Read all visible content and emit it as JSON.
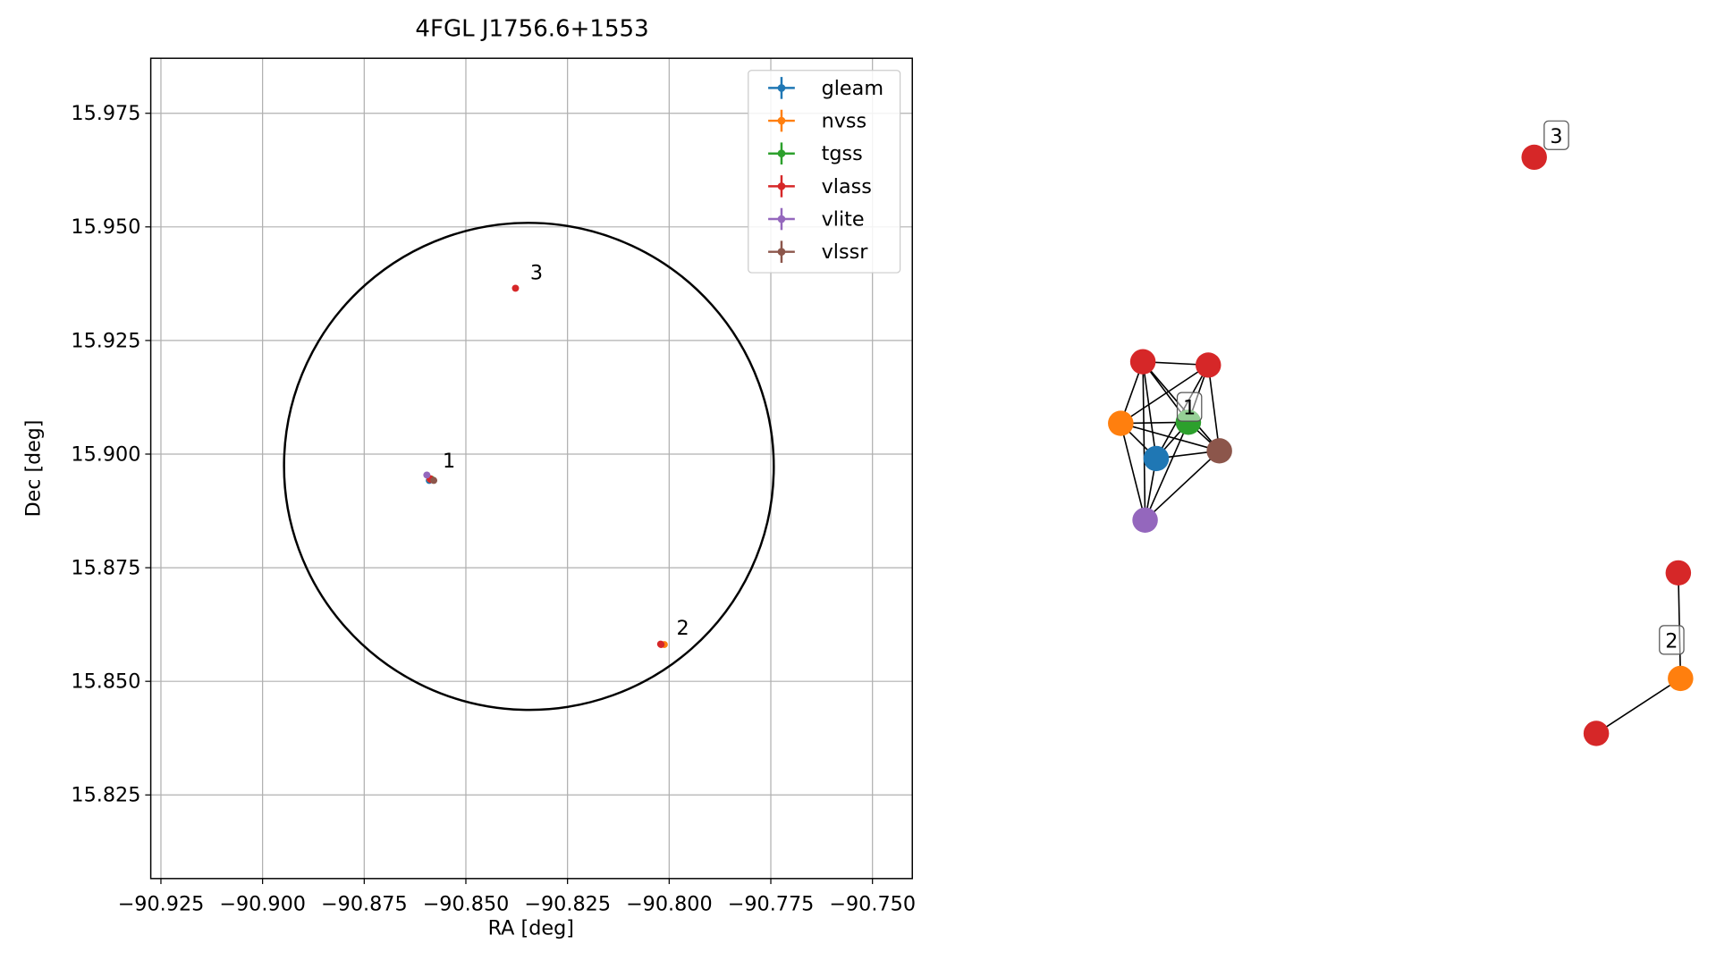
{
  "chart_data": [
    {
      "type": "scatter",
      "title": "4FGL J1756.6+1553",
      "x_label": "RA [deg]",
      "y_label": "Dec [deg]",
      "xlim": [
        -90.9275,
        -90.7402
      ],
      "ylim": [
        15.8066,
        15.9871
      ],
      "xticks": [
        {
          "value": -90.925,
          "label": "−90.925"
        },
        {
          "value": -90.9,
          "label": "−90.900"
        },
        {
          "value": -90.875,
          "label": "−90.875"
        },
        {
          "value": -90.85,
          "label": "−90.850"
        },
        {
          "value": -90.825,
          "label": "−90.825"
        },
        {
          "value": -90.8,
          "label": "−90.800"
        },
        {
          "value": -90.775,
          "label": "−90.775"
        },
        {
          "value": -90.75,
          "label": "−90.750"
        }
      ],
      "yticks": [
        {
          "value": 15.825,
          "label": "15.825"
        },
        {
          "value": 15.85,
          "label": "15.850"
        },
        {
          "value": 15.875,
          "label": "15.875"
        },
        {
          "value": 15.9,
          "label": "15.900"
        },
        {
          "value": 15.925,
          "label": "15.925"
        },
        {
          "value": 15.95,
          "label": "15.950"
        },
        {
          "value": 15.975,
          "label": "15.975"
        }
      ],
      "grid": true,
      "legend": "upper right",
      "series": [
        {
          "name": "gleam",
          "color": "#1f77b4",
          "x": [
            -90.859
          ],
          "values": [
            15.8942
          ]
        },
        {
          "name": "nvss",
          "color": "#ff7f0e",
          "x": [
            -90.8588,
            -90.8012
          ],
          "values": [
            15.8945,
            15.8581
          ]
        },
        {
          "name": "tgss",
          "color": "#2ca02c",
          "x": [
            -90.8585
          ],
          "values": [
            15.8945
          ]
        },
        {
          "name": "vlass",
          "color": "#d62728",
          "x": [
            -90.8588,
            -90.8586,
            -90.8021,
            -90.802,
            -90.8378
          ],
          "values": [
            15.8946,
            15.8944,
            15.8582,
            15.8581,
            15.9365
          ]
        },
        {
          "name": "vlite",
          "color": "#9467bd",
          "x": [
            -90.8596
          ],
          "values": [
            15.8954
          ]
        },
        {
          "name": "vlssr",
          "color": "#8c564b",
          "x": [
            -90.8579
          ],
          "values": [
            15.8942
          ]
        }
      ],
      "ellipse": {
        "center_x": -90.8345,
        "center_y": 15.8973,
        "half_width": 0.0602,
        "half_height": 0.0536,
        "angle": -20
      },
      "annotations": [
        {
          "text": "1",
          "x": -90.8557,
          "y": 15.8985
        },
        {
          "text": "2",
          "x": -90.7982,
          "y": 15.8617
        },
        {
          "text": "3",
          "x": -90.8342,
          "y": 15.9399
        }
      ]
    },
    {
      "type": "graph",
      "nodes": [
        {
          "color": "#d62728"
        },
        {
          "color": "#d62728"
        },
        {
          "color": "#ff7f0e"
        },
        {
          "color": "#2ca02c"
        },
        {
          "color": "#1f77b4"
        },
        {
          "color": "#8c564b"
        },
        {
          "color": "#9467bd"
        },
        {
          "color": "#d62728"
        },
        {
          "color": "#ff7f0e"
        },
        {
          "color": "#d62728"
        },
        {
          "color": "#d62728"
        }
      ],
      "edges": [
        [
          0,
          1
        ],
        [
          0,
          2
        ],
        [
          0,
          3
        ],
        [
          0,
          4
        ],
        [
          0,
          5
        ],
        [
          0,
          6
        ],
        [
          1,
          2
        ],
        [
          1,
          3
        ],
        [
          1,
          4
        ],
        [
          1,
          5
        ],
        [
          2,
          3
        ],
        [
          2,
          4
        ],
        [
          2,
          5
        ],
        [
          2,
          6
        ],
        [
          3,
          4
        ],
        [
          3,
          5
        ],
        [
          3,
          6
        ],
        [
          4,
          5
        ],
        [
          4,
          6
        ],
        [
          5,
          6
        ],
        [
          7,
          8
        ],
        [
          8,
          9
        ]
      ],
      "labels": [
        "1",
        "2",
        "3"
      ]
    }
  ]
}
